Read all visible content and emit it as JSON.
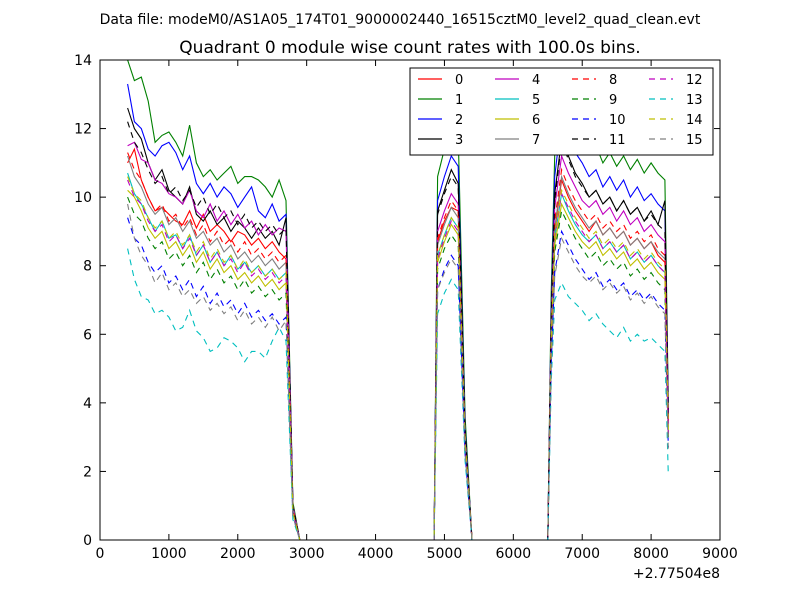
{
  "chart_data": {
    "type": "line",
    "suptitle": "Data file: modeM0/AS1A05_174T01_9000002440_16515cztM0_level2_quad_clean.evt",
    "title": "Quadrant 0 module wise count rates with 100.0s bins.",
    "xlabel": "",
    "ylabel": "",
    "x_offset_label": "+2.77504e8",
    "xlim": [
      0,
      9000
    ],
    "ylim": [
      0,
      14
    ],
    "xticks": [
      0,
      1000,
      2000,
      3000,
      4000,
      5000,
      6000,
      7000,
      8000,
      9000
    ],
    "yticks": [
      0,
      2,
      4,
      6,
      8,
      10,
      12,
      14
    ],
    "grid": false,
    "legend_position": "top-right",
    "legend_columns": 4,
    "x": [
      400,
      500,
      600,
      700,
      800,
      900,
      1000,
      1100,
      1200,
      1300,
      1400,
      1500,
      1600,
      1700,
      1800,
      1900,
      2000,
      2100,
      2200,
      2300,
      2400,
      2500,
      2600,
      2700,
      2800,
      2900,
      3000,
      3500,
      4000,
      4500,
      4850,
      4900,
      5000,
      5100,
      5200,
      5300,
      5400,
      5500,
      6000,
      6500,
      6550,
      6600,
      6700,
      6800,
      6900,
      7000,
      7100,
      7200,
      7300,
      7400,
      7500,
      7600,
      7700,
      7800,
      7900,
      8000,
      8100,
      8200,
      8250
    ],
    "series": [
      {
        "name": "0",
        "color": "#ff0000",
        "dashed": false,
        "values": [
          11.0,
          11.4,
          10.5,
          10.0,
          9.6,
          9.7,
          9.5,
          9.3,
          9.2,
          9.6,
          9.1,
          9.5,
          9.0,
          9.2,
          9.0,
          8.7,
          9.0,
          8.9,
          8.6,
          8.8,
          8.5,
          8.7,
          8.4,
          8.2,
          0.9,
          0.0,
          0.0,
          0.0,
          0.0,
          0.0,
          0.0,
          8.7,
          9.3,
          9.7,
          9.6,
          3.0,
          0.0,
          0.0,
          0.0,
          0.0,
          6.0,
          9.0,
          10.5,
          10.0,
          9.6,
          9.3,
          9.0,
          9.3,
          8.9,
          9.1,
          8.8,
          9.0,
          8.6,
          8.8,
          8.5,
          8.7,
          8.3,
          8.1,
          3.4
        ]
      },
      {
        "name": "1",
        "color": "#008000",
        "dashed": false,
        "values": [
          14.0,
          13.4,
          13.5,
          12.8,
          11.6,
          11.8,
          11.9,
          11.6,
          11.2,
          12.1,
          11.0,
          10.6,
          10.8,
          10.5,
          10.7,
          10.9,
          10.4,
          10.6,
          10.6,
          10.5,
          10.3,
          10.0,
          10.5,
          9.9,
          1.1,
          0.0,
          0.0,
          0.0,
          0.0,
          0.0,
          0.0,
          10.6,
          11.4,
          12.2,
          11.8,
          3.6,
          0.0,
          0.0,
          0.0,
          0.0,
          7.2,
          11.2,
          13.1,
          12.6,
          12.1,
          11.8,
          11.3,
          11.5,
          11.0,
          11.3,
          10.9,
          11.2,
          10.8,
          11.1,
          10.7,
          11.0,
          10.7,
          10.5,
          4.0
        ]
      },
      {
        "name": "2",
        "color": "#0000ff",
        "dashed": false,
        "values": [
          13.3,
          12.2,
          12.0,
          11.4,
          11.2,
          11.5,
          11.6,
          11.3,
          10.8,
          11.2,
          10.4,
          10.1,
          10.4,
          10.0,
          10.3,
          10.1,
          9.7,
          10.0,
          10.3,
          9.6,
          9.4,
          9.8,
          9.3,
          9.5,
          1.0,
          0.0,
          0.0,
          0.0,
          0.0,
          0.0,
          0.0,
          9.9,
          10.6,
          11.2,
          10.9,
          3.3,
          0.0,
          0.0,
          0.0,
          0.0,
          6.7,
          10.6,
          12.3,
          11.8,
          11.3,
          11.0,
          10.6,
          10.8,
          10.3,
          10.6,
          10.2,
          10.5,
          10.0,
          10.3,
          9.9,
          10.1,
          9.8,
          9.6,
          3.8
        ]
      },
      {
        "name": "3",
        "color": "#000000",
        "dashed": false,
        "values": [
          12.6,
          12.0,
          11.7,
          11.0,
          10.5,
          10.8,
          10.2,
          10.0,
          9.8,
          10.3,
          9.5,
          9.3,
          9.6,
          9.2,
          9.4,
          9.0,
          9.3,
          9.1,
          8.8,
          9.1,
          8.8,
          9.0,
          8.6,
          9.4,
          1.0,
          0.0,
          0.0,
          0.0,
          0.0,
          0.0,
          0.0,
          9.6,
          10.2,
          10.8,
          10.4,
          3.2,
          0.0,
          0.0,
          0.0,
          0.0,
          6.4,
          10.1,
          11.7,
          11.2,
          10.7,
          10.4,
          10.0,
          10.2,
          9.8,
          10.0,
          9.6,
          9.9,
          9.5,
          9.7,
          9.3,
          9.6,
          9.2,
          9.9,
          3.6
        ]
      },
      {
        "name": "4",
        "color": "#bf00bf",
        "dashed": false,
        "values": [
          11.5,
          11.6,
          11.1,
          11.0,
          10.5,
          10.4,
          10.1,
          10.0,
          9.8,
          10.2,
          9.6,
          9.4,
          9.8,
          9.3,
          9.6,
          9.2,
          9.5,
          9.1,
          9.3,
          8.9,
          9.2,
          8.9,
          9.1,
          9.0,
          1.0,
          0.0,
          0.0,
          0.0,
          0.0,
          0.0,
          0.0,
          9.0,
          9.6,
          10.1,
          9.8,
          3.1,
          0.0,
          0.0,
          0.0,
          0.0,
          6.3,
          9.7,
          11.2,
          10.7,
          10.3,
          9.9,
          9.7,
          9.9,
          9.5,
          9.7,
          9.3,
          9.6,
          9.2,
          9.4,
          9.0,
          9.2,
          8.9,
          8.7,
          3.5
        ]
      },
      {
        "name": "5",
        "color": "#00bfbf",
        "dashed": false,
        "values": [
          10.7,
          10.1,
          9.8,
          9.4,
          9.0,
          9.3,
          8.8,
          8.9,
          8.5,
          8.9,
          8.3,
          8.6,
          8.1,
          8.4,
          8.0,
          8.3,
          7.9,
          8.1,
          7.8,
          8.0,
          7.7,
          7.9,
          7.6,
          7.8,
          0.9,
          0.0,
          0.0,
          0.0,
          0.0,
          0.0,
          0.0,
          8.3,
          8.9,
          9.4,
          9.1,
          2.9,
          0.0,
          0.0,
          0.0,
          0.0,
          5.8,
          8.8,
          10.1,
          9.6,
          9.2,
          8.9,
          8.7,
          8.9,
          8.5,
          8.7,
          8.4,
          8.6,
          8.2,
          8.4,
          8.1,
          8.3,
          8.0,
          7.8,
          3.1
        ]
      },
      {
        "name": "6",
        "color": "#bfbf00",
        "dashed": false,
        "values": [
          10.2,
          10.0,
          9.6,
          9.1,
          8.8,
          9.0,
          8.5,
          8.7,
          8.3,
          8.6,
          8.1,
          8.4,
          7.9,
          8.2,
          7.8,
          8.0,
          7.6,
          7.8,
          7.5,
          7.7,
          7.4,
          7.6,
          7.3,
          7.5,
          0.9,
          0.0,
          0.0,
          0.0,
          0.0,
          0.0,
          0.0,
          8.1,
          8.7,
          9.2,
          8.9,
          2.8,
          0.0,
          0.0,
          0.0,
          0.0,
          5.7,
          8.6,
          9.8,
          9.4,
          9.0,
          8.7,
          8.5,
          8.7,
          8.3,
          8.5,
          8.2,
          8.4,
          8.0,
          8.2,
          7.9,
          8.1,
          7.8,
          7.6,
          3.0
        ]
      },
      {
        "name": "7",
        "color": "#808080",
        "dashed": false,
        "values": [
          11.2,
          10.6,
          10.3,
          9.8,
          9.5,
          9.7,
          9.2,
          9.4,
          9.0,
          9.3,
          8.8,
          9.0,
          8.6,
          8.8,
          8.4,
          8.6,
          8.2,
          8.4,
          8.1,
          8.3,
          8.0,
          8.2,
          7.9,
          8.1,
          0.9,
          0.0,
          0.0,
          0.0,
          0.0,
          0.0,
          0.0,
          8.6,
          9.2,
          9.7,
          9.4,
          3.0,
          0.0,
          0.0,
          0.0,
          0.0,
          6.0,
          9.1,
          10.6,
          10.1,
          9.7,
          9.4,
          9.1,
          9.3,
          8.9,
          9.1,
          8.8,
          9.0,
          8.6,
          8.8,
          8.5,
          8.7,
          8.4,
          8.2,
          3.3
        ]
      },
      {
        "name": "8",
        "color": "#ff0000",
        "dashed": true,
        "values": [
          11.3,
          10.8,
          10.5,
          10.0,
          9.6,
          9.8,
          9.3,
          9.5,
          9.1,
          9.4,
          8.9,
          9.2,
          8.7,
          9.0,
          8.6,
          8.8,
          8.4,
          8.7,
          8.3,
          8.5,
          8.2,
          8.4,
          8.1,
          8.3,
          0.9,
          0.0,
          0.0,
          0.0,
          0.0,
          0.0,
          0.0,
          8.8,
          9.4,
          9.9,
          9.6,
          3.0,
          0.0,
          0.0,
          0.0,
          0.0,
          6.1,
          9.3,
          10.8,
          10.3,
          9.9,
          9.6,
          9.3,
          9.5,
          9.1,
          9.3,
          9.0,
          9.2,
          8.8,
          9.0,
          8.7,
          8.9,
          8.5,
          8.3,
          3.4
        ]
      },
      {
        "name": "9",
        "color": "#008000",
        "dashed": true,
        "values": [
          10.0,
          9.5,
          9.3,
          8.8,
          8.5,
          8.7,
          8.2,
          8.4,
          8.0,
          8.3,
          7.8,
          8.1,
          7.6,
          7.9,
          7.5,
          7.7,
          7.3,
          7.6,
          7.2,
          7.4,
          7.1,
          7.3,
          7.0,
          7.2,
          0.8,
          0.0,
          0.0,
          0.0,
          0.0,
          0.0,
          0.0,
          7.9,
          8.5,
          8.9,
          8.6,
          2.7,
          0.0,
          0.0,
          0.0,
          0.0,
          5.5,
          8.4,
          9.6,
          9.2,
          8.8,
          8.5,
          8.2,
          8.4,
          8.0,
          8.2,
          7.9,
          8.1,
          7.7,
          7.9,
          7.6,
          7.8,
          7.5,
          7.3,
          2.9
        ]
      },
      {
        "name": "10",
        "color": "#0000ff",
        "dashed": true,
        "values": [
          9.4,
          8.8,
          8.6,
          8.1,
          7.8,
          8.0,
          7.5,
          7.7,
          7.3,
          7.6,
          7.1,
          7.4,
          6.9,
          7.2,
          6.8,
          7.0,
          6.6,
          6.9,
          6.5,
          6.7,
          6.4,
          6.6,
          6.3,
          6.5,
          0.7,
          0.0,
          0.0,
          0.0,
          0.0,
          0.0,
          0.0,
          7.3,
          7.9,
          8.3,
          8.0,
          2.5,
          0.0,
          0.0,
          0.0,
          0.0,
          5.1,
          7.8,
          9.0,
          8.6,
          8.2,
          7.9,
          7.6,
          7.8,
          7.4,
          7.6,
          7.3,
          7.5,
          7.1,
          7.3,
          7.0,
          7.2,
          6.9,
          6.7,
          2.7
        ]
      },
      {
        "name": "11",
        "color": "#000000",
        "dashed": true,
        "values": [
          12.2,
          11.6,
          11.3,
          10.8,
          10.4,
          10.6,
          10.1,
          10.3,
          9.9,
          10.2,
          9.7,
          10.0,
          9.5,
          9.8,
          9.4,
          9.6,
          9.2,
          9.5,
          9.1,
          9.3,
          9.0,
          9.2,
          8.9,
          9.1,
          1.0,
          0.0,
          0.0,
          0.0,
          0.0,
          0.0,
          0.0,
          9.5,
          10.1,
          10.6,
          10.3,
          3.2,
          0.0,
          0.0,
          0.0,
          0.0,
          6.5,
          9.9,
          11.6,
          11.1,
          10.6,
          10.3,
          10.0,
          10.2,
          9.8,
          10.0,
          9.6,
          9.9,
          9.5,
          9.7,
          9.3,
          9.5,
          9.2,
          9.0,
          3.6
        ]
      },
      {
        "name": "12",
        "color": "#bf00bf",
        "dashed": true,
        "values": [
          10.5,
          10.0,
          9.8,
          9.3,
          9.0,
          9.2,
          8.7,
          8.9,
          8.5,
          8.8,
          8.3,
          8.6,
          8.1,
          8.4,
          8.0,
          8.2,
          7.8,
          8.1,
          7.7,
          7.9,
          7.6,
          7.8,
          7.5,
          7.7,
          0.8,
          0.0,
          0.0,
          0.0,
          0.0,
          0.0,
          0.0,
          8.2,
          8.8,
          9.3,
          9.0,
          2.8,
          0.0,
          0.0,
          0.0,
          0.0,
          5.8,
          8.8,
          10.1,
          9.7,
          9.3,
          9.0,
          8.7,
          8.9,
          8.5,
          8.7,
          8.4,
          8.6,
          8.2,
          8.4,
          8.1,
          8.3,
          8.0,
          7.8,
          3.1
        ]
      },
      {
        "name": "13",
        "color": "#00bfbf",
        "dashed": true,
        "values": [
          8.5,
          7.6,
          7.1,
          7.0,
          6.6,
          6.7,
          6.5,
          6.1,
          6.2,
          6.7,
          6.1,
          5.9,
          5.5,
          5.6,
          5.9,
          5.8,
          5.6,
          5.2,
          5.5,
          5.5,
          5.3,
          5.8,
          6.2,
          5.8,
          0.6,
          0.0,
          0.0,
          0.0,
          0.0,
          0.0,
          0.0,
          6.6,
          7.2,
          7.6,
          7.3,
          2.3,
          0.0,
          0.0,
          0.0,
          0.0,
          4.6,
          7.0,
          7.5,
          7.1,
          6.9,
          6.7,
          6.4,
          6.6,
          6.3,
          6.1,
          5.9,
          6.2,
          5.8,
          6.0,
          5.8,
          5.9,
          5.7,
          5.5,
          1.9
        ]
      },
      {
        "name": "14",
        "color": "#bfbf00",
        "dashed": true,
        "values": [
          10.6,
          10.1,
          9.9,
          9.4,
          9.1,
          9.3,
          8.8,
          9.0,
          8.6,
          8.9,
          8.4,
          8.7,
          8.2,
          8.5,
          8.1,
          8.3,
          7.9,
          8.2,
          7.8,
          8.0,
          7.7,
          7.9,
          7.6,
          7.8,
          0.8,
          0.0,
          0.0,
          0.0,
          0.0,
          0.0,
          0.0,
          8.3,
          8.9,
          9.4,
          9.1,
          2.9,
          0.0,
          0.0,
          0.0,
          0.0,
          5.8,
          8.9,
          10.2,
          9.8,
          9.4,
          9.1,
          8.8,
          9.0,
          8.6,
          8.8,
          8.5,
          8.7,
          8.3,
          8.5,
          8.2,
          8.4,
          8.1,
          7.9,
          3.2
        ]
      },
      {
        "name": "15",
        "color": "#808080",
        "dashed": true,
        "values": [
          9.8,
          8.8,
          8.3,
          8.0,
          7.5,
          7.8,
          7.3,
          7.5,
          7.1,
          7.3,
          6.9,
          7.1,
          6.7,
          6.9,
          6.6,
          6.8,
          6.4,
          6.7,
          6.3,
          6.5,
          6.2,
          6.5,
          6.1,
          6.4,
          0.7,
          0.0,
          0.0,
          0.0,
          0.0,
          0.0,
          0.0,
          7.3,
          7.8,
          8.2,
          7.9,
          2.5,
          0.0,
          0.0,
          0.0,
          0.0,
          5.0,
          7.7,
          8.8,
          8.4,
          8.0,
          7.7,
          7.5,
          7.7,
          7.3,
          7.5,
          7.2,
          7.4,
          7.0,
          7.2,
          6.9,
          7.1,
          6.8,
          6.6,
          2.6
        ]
      }
    ]
  }
}
